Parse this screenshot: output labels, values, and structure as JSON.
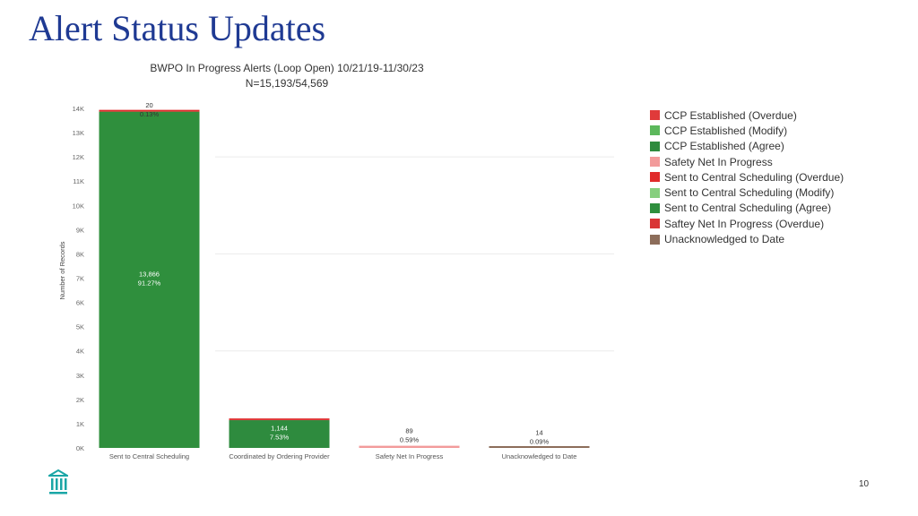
{
  "slide": {
    "title": "Alert Status Updates",
    "page_number": "10"
  },
  "chart_data": {
    "type": "bar",
    "title": "BWPO In Progress Alerts (Loop Open)  10/21/19-11/30/23",
    "subtitle": "N=15,193/54,569",
    "ylabel": "Number of Records",
    "xlabel": "",
    "ylim": [
      0,
      14000
    ],
    "yticks": [
      "0K",
      "1K",
      "2K",
      "3K",
      "4K",
      "5K",
      "6K",
      "7K",
      "8K",
      "9K",
      "10K",
      "11K",
      "12K",
      "13K",
      "14K"
    ],
    "grid": true,
    "legend_position": "right",
    "categories": [
      "Sent to Central Scheduling",
      "Coordinated by Ordering Provider",
      "Safety Net In Progress",
      "Unacknowledged to Date"
    ],
    "bars": [
      {
        "segments": [
          {
            "series": "Sent to Central Scheduling (Agree)",
            "value": 13866
          },
          {
            "series": "Sent to Central Scheduling (Overdue)",
            "value": 20
          }
        ],
        "labels": [
          {
            "count": "13,866",
            "pct": "91.27%",
            "place": "inside"
          },
          {
            "count": "20",
            "pct": "0.13%",
            "place": "top"
          }
        ]
      },
      {
        "segments": [
          {
            "series": "CCP Established (Agree)",
            "value": 1144
          },
          {
            "series": "CCP Established (Overdue)",
            "value": 16
          }
        ],
        "labels": [
          {
            "count": "1,144",
            "pct": "7.53%",
            "place": "inside"
          }
        ]
      },
      {
        "segments": [
          {
            "series": "Safety Net In Progress",
            "value": 89
          }
        ],
        "labels": [
          {
            "count": "89",
            "pct": "0.59%",
            "place": "above"
          }
        ]
      },
      {
        "segments": [
          {
            "series": "Unacknowledged to Date",
            "value": 14
          }
        ],
        "labels": [
          {
            "count": "14",
            "pct": "0.09%",
            "place": "above"
          }
        ]
      }
    ],
    "legend": [
      {
        "name": "CCP Established (Overdue)",
        "color": "#e03a3a"
      },
      {
        "name": "CCP Established (Modify)",
        "color": "#5cb85c"
      },
      {
        "name": "CCP Established (Agree)",
        "color": "#2e8b3e"
      },
      {
        "name": "Safety Net In Progress",
        "color": "#f29b9b"
      },
      {
        "name": "Sent to Central Scheduling (Overdue)",
        "color": "#e02b2b"
      },
      {
        "name": "Sent to Central Scheduling (Modify)",
        "color": "#86cf7e"
      },
      {
        "name": "Sent to Central Scheduling (Agree)",
        "color": "#2f8f3d"
      },
      {
        "name": "Saftey Net In Progress (Overdue)",
        "color": "#d93636"
      },
      {
        "name": "Unacknowledged to Date",
        "color": "#8c6d5a"
      }
    ]
  }
}
